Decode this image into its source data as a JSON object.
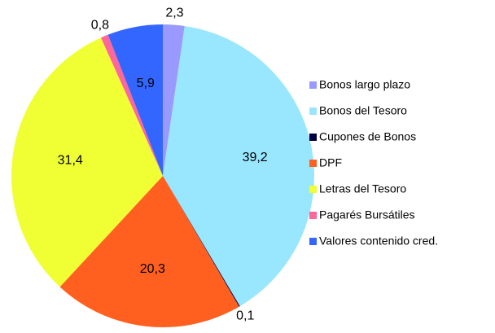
{
  "chart_data": {
    "type": "pie",
    "categories": [
      "Bonos largo plazo",
      "Bonos del Tesoro",
      "Cupones de Bonos",
      "DPF",
      "Letras del Tesoro",
      "Pagarés Bursátiles",
      "Valores contenido cred."
    ],
    "values": [
      2.3,
      39.2,
      0.1,
      20.3,
      31.4,
      0.8,
      5.9
    ],
    "value_labels": [
      "2,3",
      "39,2",
      "0,1",
      "20,3",
      "31,4",
      "0,8",
      "5,9"
    ],
    "colors": [
      "#9999ff",
      "#99e6ff",
      "#000040",
      "#ff6020",
      "#f0ff33",
      "#ff6699",
      "#3366ff"
    ],
    "legend": "right"
  }
}
